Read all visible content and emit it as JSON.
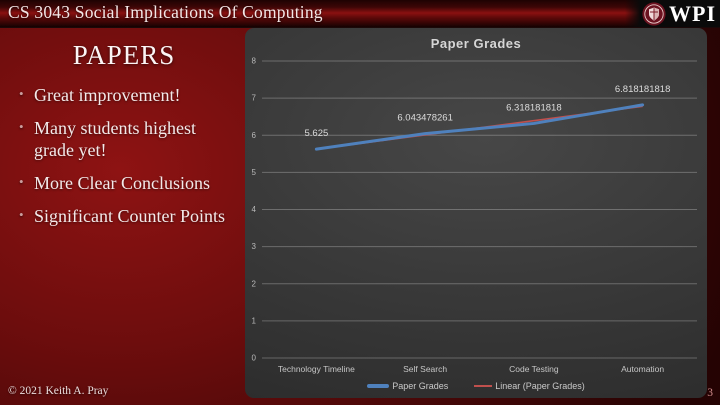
{
  "header": {
    "course_title": "CS 3043 Social Implications Of Computing",
    "logo_text": "WPI"
  },
  "left": {
    "title": "PAPERS",
    "bullets": [
      "Great improvement!",
      "Many students highest grade yet!",
      "More Clear Conclusions",
      "Significant Counter Points"
    ]
  },
  "chart_data": {
    "type": "line",
    "title": "Paper Grades",
    "categories": [
      "Technology Timeline",
      "Self Search",
      "Code Testing",
      "Automation"
    ],
    "series": [
      {
        "name": "Paper Grades",
        "values": [
          5.625,
          6.043478261,
          6.318181818,
          6.818181818
        ],
        "color": "#4F81BD",
        "style": "solid-thick"
      },
      {
        "name": "Linear (Paper Grades)",
        "derived": "linear_trend_of_series_0",
        "color": "#C0504D",
        "style": "solid-thin"
      }
    ],
    "data_labels": [
      "5.625",
      "6.043478261",
      "6.318181818",
      "6.818181818"
    ],
    "ylim": [
      0,
      8
    ],
    "ytick_step": 1,
    "grid": true,
    "legend_position": "bottom"
  },
  "footer": {
    "copyright": "© 2021 Keith A. Pray",
    "page_number": "3"
  },
  "colors": {
    "series_blue": "#4F81BD",
    "trend_red": "#C0504D",
    "slide_red": "#6d0d0d",
    "panel_gray": "#3a3a3a"
  }
}
